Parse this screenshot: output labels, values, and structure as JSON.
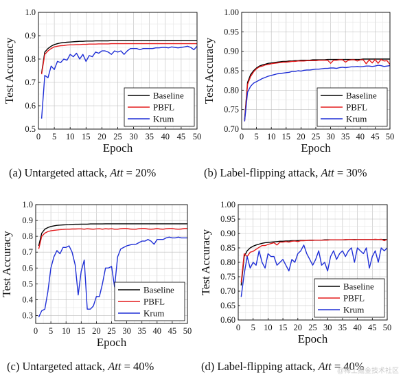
{
  "figure": {
    "watermark": "@稀土掘金技术社区"
  },
  "chart_data": [
    {
      "type": "line",
      "caption": {
        "label": "(a)",
        "text": "Untargeted attack,",
        "math_var": "Att",
        "math_op": "=",
        "math_val": "20%"
      },
      "xlabel": "Epoch",
      "ylabel": "Test Accuracy",
      "xlim": [
        0,
        50
      ],
      "ylim": [
        0.5,
        1.0
      ],
      "xticks": [
        "0",
        "5",
        "10",
        "15",
        "20",
        "25",
        "30",
        "35",
        "40",
        "45",
        "50"
      ],
      "yticks": [
        "0.5",
        "0.6",
        "0.7",
        "0.8",
        "0.9",
        "1.0"
      ],
      "grid": true,
      "legend_position": "bottom-right",
      "x": [
        1,
        2,
        3,
        4,
        5,
        6,
        7,
        8,
        9,
        10,
        11,
        12,
        13,
        14,
        15,
        16,
        17,
        18,
        19,
        20,
        21,
        22,
        23,
        24,
        25,
        26,
        27,
        28,
        29,
        30,
        31,
        32,
        33,
        34,
        35,
        36,
        37,
        38,
        39,
        40,
        41,
        42,
        43,
        44,
        45,
        46,
        47,
        48,
        49,
        50
      ],
      "series": [
        {
          "name": "Baseline",
          "color": "#000000",
          "values": [
            0.74,
            0.83,
            0.845,
            0.855,
            0.862,
            0.866,
            0.869,
            0.871,
            0.872,
            0.873,
            0.874,
            0.875,
            0.876,
            0.876,
            0.877,
            0.877,
            0.877,
            0.878,
            0.878,
            0.878,
            0.878,
            0.878,
            0.879,
            0.879,
            0.879,
            0.879,
            0.879,
            0.879,
            0.879,
            0.879,
            0.879,
            0.879,
            0.879,
            0.879,
            0.879,
            0.879,
            0.879,
            0.879,
            0.879,
            0.879,
            0.879,
            0.879,
            0.879,
            0.879,
            0.879,
            0.879,
            0.879,
            0.879,
            0.879,
            0.879
          ]
        },
        {
          "name": "PBFL",
          "color": "#e41a1c",
          "values": [
            0.735,
            0.82,
            0.835,
            0.845,
            0.852,
            0.855,
            0.857,
            0.858,
            0.86,
            0.861,
            0.861,
            0.862,
            0.862,
            0.863,
            0.863,
            0.864,
            0.864,
            0.864,
            0.865,
            0.865,
            0.865,
            0.865,
            0.866,
            0.866,
            0.866,
            0.866,
            0.866,
            0.866,
            0.866,
            0.866,
            0.866,
            0.866,
            0.866,
            0.866,
            0.866,
            0.866,
            0.866,
            0.866,
            0.866,
            0.866,
            0.866,
            0.866,
            0.866,
            0.866,
            0.866,
            0.866,
            0.866,
            0.866,
            0.866,
            0.866
          ]
        },
        {
          "name": "Krum",
          "color": "#1f2fd6",
          "values": [
            0.545,
            0.73,
            0.72,
            0.77,
            0.755,
            0.79,
            0.785,
            0.8,
            0.795,
            0.82,
            0.81,
            0.825,
            0.8,
            0.82,
            0.79,
            0.815,
            0.81,
            0.83,
            0.825,
            0.835,
            0.835,
            0.83,
            0.82,
            0.835,
            0.83,
            0.835,
            0.82,
            0.835,
            0.845,
            0.845,
            0.845,
            0.84,
            0.845,
            0.845,
            0.845,
            0.845,
            0.848,
            0.848,
            0.85,
            0.85,
            0.848,
            0.852,
            0.85,
            0.848,
            0.85,
            0.852,
            0.855,
            0.85,
            0.84,
            0.855
          ]
        }
      ]
    },
    {
      "type": "line",
      "caption": {
        "label": "(b)",
        "text": "Label-flipping attack,",
        "math_var": "Att",
        "math_op": "=",
        "math_val": "30%"
      },
      "xlabel": "Epoch",
      "ylabel": "Test Accuracy",
      "xlim": [
        0,
        50
      ],
      "ylim": [
        0.7,
        1.0
      ],
      "xticks": [
        "0",
        "5",
        "10",
        "15",
        "20",
        "25",
        "30",
        "35",
        "40",
        "45",
        "50"
      ],
      "yticks": [
        "0.70",
        "0.75",
        "0.80",
        "0.85",
        "0.90",
        "0.95",
        "1.00"
      ],
      "grid": true,
      "legend_position": "bottom-right",
      "x": [
        1,
        2,
        3,
        4,
        5,
        6,
        7,
        8,
        9,
        10,
        11,
        12,
        13,
        14,
        15,
        16,
        17,
        18,
        19,
        20,
        21,
        22,
        23,
        24,
        25,
        26,
        27,
        28,
        29,
        30,
        31,
        32,
        33,
        34,
        35,
        36,
        37,
        38,
        39,
        40,
        41,
        42,
        43,
        44,
        45,
        46,
        47,
        48,
        49,
        50
      ],
      "series": [
        {
          "name": "Baseline",
          "color": "#000000",
          "values": [
            0.725,
            0.82,
            0.84,
            0.85,
            0.857,
            0.862,
            0.865,
            0.867,
            0.869,
            0.87,
            0.871,
            0.872,
            0.873,
            0.874,
            0.874,
            0.875,
            0.875,
            0.876,
            0.876,
            0.877,
            0.877,
            0.877,
            0.877,
            0.878,
            0.878,
            0.878,
            0.878,
            0.878,
            0.879,
            0.879,
            0.879,
            0.879,
            0.879,
            0.879,
            0.879,
            0.879,
            0.879,
            0.879,
            0.879,
            0.879,
            0.88,
            0.88,
            0.88,
            0.88,
            0.88,
            0.88,
            0.88,
            0.88,
            0.88,
            0.88
          ]
        },
        {
          "name": "PBFL",
          "color": "#e41a1c",
          "values": [
            0.72,
            0.815,
            0.835,
            0.847,
            0.855,
            0.86,
            0.862,
            0.865,
            0.866,
            0.868,
            0.869,
            0.87,
            0.871,
            0.872,
            0.872,
            0.873,
            0.874,
            0.874,
            0.875,
            0.875,
            0.875,
            0.876,
            0.876,
            0.876,
            0.876,
            0.877,
            0.877,
            0.877,
            0.877,
            0.869,
            0.877,
            0.877,
            0.878,
            0.878,
            0.872,
            0.877,
            0.878,
            0.878,
            0.875,
            0.878,
            0.878,
            0.868,
            0.878,
            0.87,
            0.879,
            0.869,
            0.879,
            0.875,
            0.876,
            0.866
          ]
        },
        {
          "name": "Krum",
          "color": "#1f2fd6",
          "values": [
            0.72,
            0.795,
            0.81,
            0.818,
            0.822,
            0.826,
            0.83,
            0.833,
            0.836,
            0.838,
            0.84,
            0.842,
            0.843,
            0.844,
            0.845,
            0.846,
            0.848,
            0.848,
            0.85,
            0.849,
            0.851,
            0.852,
            0.852,
            0.853,
            0.854,
            0.854,
            0.855,
            0.856,
            0.856,
            0.857,
            0.857,
            0.856,
            0.858,
            0.859,
            0.858,
            0.859,
            0.86,
            0.86,
            0.861,
            0.86,
            0.861,
            0.862,
            0.862,
            0.861,
            0.862,
            0.864,
            0.863,
            0.861,
            0.862,
            0.863
          ]
        }
      ]
    },
    {
      "type": "line",
      "caption": {
        "label": "(c)",
        "text": "Untargeted attack,",
        "math_var": "Att",
        "math_op": "=",
        "math_val": "40%"
      },
      "xlabel": "Epoch",
      "ylabel": "Test Accuracy",
      "xlim": [
        0,
        50
      ],
      "ylim": [
        0.25,
        1.0
      ],
      "xticks": [
        "0",
        "5",
        "10",
        "15",
        "20",
        "25",
        "30",
        "35",
        "40",
        "45",
        "50"
      ],
      "yticks": [
        "0.3",
        "0.4",
        "0.5",
        "0.6",
        "0.7",
        "0.8",
        "0.9",
        "1.0"
      ],
      "grid": true,
      "legend_position": "bottom-right",
      "x": [
        1,
        2,
        3,
        4,
        5,
        6,
        7,
        8,
        9,
        10,
        11,
        12,
        13,
        14,
        15,
        16,
        17,
        18,
        19,
        20,
        21,
        22,
        23,
        24,
        25,
        26,
        27,
        28,
        29,
        30,
        31,
        32,
        33,
        34,
        35,
        36,
        37,
        38,
        39,
        40,
        41,
        42,
        43,
        44,
        45,
        46,
        47,
        48,
        49,
        50
      ],
      "series": [
        {
          "name": "Baseline",
          "color": "#000000",
          "values": [
            0.74,
            0.82,
            0.845,
            0.855,
            0.862,
            0.866,
            0.869,
            0.871,
            0.872,
            0.873,
            0.874,
            0.875,
            0.876,
            0.876,
            0.877,
            0.877,
            0.877,
            0.878,
            0.878,
            0.878,
            0.878,
            0.878,
            0.879,
            0.879,
            0.879,
            0.879,
            0.879,
            0.879,
            0.879,
            0.879,
            0.879,
            0.879,
            0.879,
            0.879,
            0.879,
            0.879,
            0.879,
            0.879,
            0.879,
            0.879,
            0.879,
            0.879,
            0.879,
            0.879,
            0.879,
            0.879,
            0.879,
            0.879,
            0.879,
            0.879
          ]
        },
        {
          "name": "PBFL",
          "color": "#e41a1c",
          "values": [
            0.72,
            0.8,
            0.82,
            0.83,
            0.835,
            0.838,
            0.84,
            0.842,
            0.843,
            0.845,
            0.845,
            0.846,
            0.846,
            0.847,
            0.847,
            0.845,
            0.848,
            0.846,
            0.845,
            0.847,
            0.848,
            0.845,
            0.848,
            0.846,
            0.848,
            0.845,
            0.845,
            0.848,
            0.849,
            0.849,
            0.846,
            0.845,
            0.845,
            0.848,
            0.849,
            0.849,
            0.846,
            0.845,
            0.846,
            0.849,
            0.846,
            0.845,
            0.848,
            0.849,
            0.849,
            0.846,
            0.845,
            0.846,
            0.849,
            0.849
          ]
        },
        {
          "name": "Krum",
          "color": "#1f2fd6",
          "values": [
            0.29,
            0.33,
            0.34,
            0.45,
            0.6,
            0.67,
            0.71,
            0.69,
            0.73,
            0.73,
            0.74,
            0.7,
            0.62,
            0.43,
            0.58,
            0.65,
            0.34,
            0.34,
            0.36,
            0.42,
            0.42,
            0.5,
            0.6,
            0.6,
            0.61,
            0.48,
            0.67,
            0.72,
            0.73,
            0.74,
            0.745,
            0.75,
            0.75,
            0.76,
            0.77,
            0.77,
            0.78,
            0.77,
            0.75,
            0.78,
            0.78,
            0.78,
            0.79,
            0.795,
            0.79,
            0.79,
            0.795,
            0.79,
            0.79,
            0.79
          ]
        }
      ]
    },
    {
      "type": "line",
      "caption": {
        "label": "(d)",
        "text": "Label-flipping attack,",
        "math_var": "Att",
        "math_op": "=",
        "math_val": "40%"
      },
      "xlabel": "Epoch",
      "ylabel": "Test Accuracy",
      "xlim": [
        0,
        50
      ],
      "ylim": [
        0.6,
        1.0
      ],
      "xticks": [
        "0",
        "5",
        "10",
        "15",
        "20",
        "25",
        "30",
        "35",
        "40",
        "45",
        "50"
      ],
      "yticks": [
        "0.60",
        "0.65",
        "0.70",
        "0.75",
        "0.80",
        "0.85",
        "0.90",
        "0.95",
        "1.00"
      ],
      "grid": true,
      "legend_position": "bottom-right",
      "x": [
        1,
        2,
        3,
        4,
        5,
        6,
        7,
        8,
        9,
        10,
        11,
        12,
        13,
        14,
        15,
        16,
        17,
        18,
        19,
        20,
        21,
        22,
        23,
        24,
        25,
        26,
        27,
        28,
        29,
        30,
        31,
        32,
        33,
        34,
        35,
        36,
        37,
        38,
        39,
        40,
        41,
        42,
        43,
        44,
        45,
        46,
        47,
        48,
        49,
        50
      ],
      "series": [
        {
          "name": "Baseline",
          "color": "#000000",
          "values": [
            0.72,
            0.82,
            0.84,
            0.85,
            0.856,
            0.86,
            0.863,
            0.866,
            0.868,
            0.869,
            0.87,
            0.871,
            0.872,
            0.873,
            0.873,
            0.874,
            0.874,
            0.875,
            0.875,
            0.875,
            0.876,
            0.876,
            0.876,
            0.877,
            0.877,
            0.877,
            0.877,
            0.877,
            0.878,
            0.878,
            0.878,
            0.878,
            0.878,
            0.878,
            0.878,
            0.878,
            0.879,
            0.879,
            0.879,
            0.879,
            0.879,
            0.879,
            0.879,
            0.879,
            0.879,
            0.879,
            0.879,
            0.879,
            0.879,
            0.879
          ]
        },
        {
          "name": "PBFL",
          "color": "#e41a1c",
          "values": [
            0.73,
            0.83,
            0.82,
            0.835,
            0.838,
            0.845,
            0.852,
            0.858,
            0.858,
            0.862,
            0.865,
            0.868,
            0.86,
            0.87,
            0.87,
            0.872,
            0.87,
            0.873,
            0.874,
            0.872,
            0.875,
            0.875,
            0.876,
            0.876,
            0.876,
            0.877,
            0.877,
            0.877,
            0.877,
            0.877,
            0.878,
            0.878,
            0.878,
            0.878,
            0.878,
            0.879,
            0.879,
            0.879,
            0.878,
            0.879,
            0.879,
            0.879,
            0.879,
            0.879,
            0.879,
            0.88,
            0.879,
            0.88,
            0.875,
            0.88
          ]
        },
        {
          "name": "Krum",
          "color": "#1f2fd6",
          "values": [
            0.68,
            0.76,
            0.82,
            0.78,
            0.8,
            0.79,
            0.84,
            0.8,
            0.78,
            0.83,
            0.82,
            0.82,
            0.79,
            0.8,
            0.81,
            0.79,
            0.77,
            0.81,
            0.8,
            0.83,
            0.84,
            0.86,
            0.83,
            0.81,
            0.79,
            0.81,
            0.84,
            0.79,
            0.8,
            0.77,
            0.82,
            0.84,
            0.81,
            0.83,
            0.84,
            0.82,
            0.84,
            0.85,
            0.8,
            0.85,
            0.84,
            0.83,
            0.85,
            0.78,
            0.82,
            0.84,
            0.8,
            0.85,
            0.84,
            0.85
          ]
        }
      ]
    }
  ]
}
